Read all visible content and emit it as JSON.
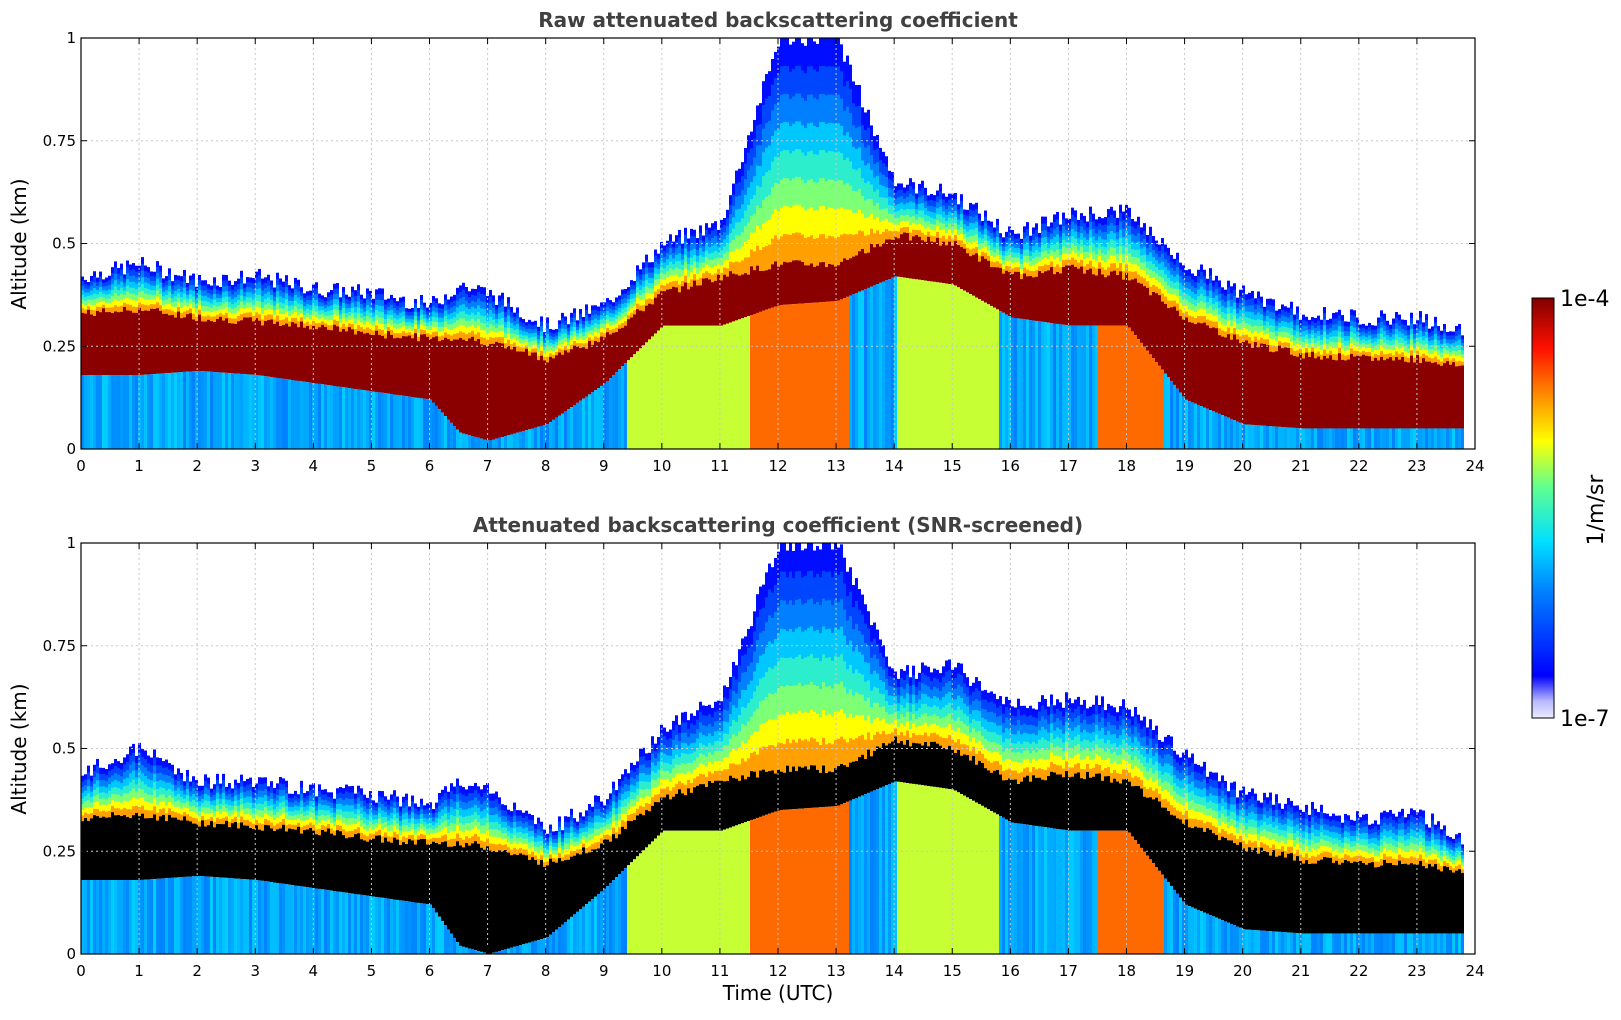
{
  "chart_data": [
    {
      "type": "heatmap",
      "title": "Raw attenuated backscattering coefficient",
      "xlabel": "",
      "ylabel": "Altitude (km)",
      "xlim": [
        0,
        24
      ],
      "ylim": [
        0,
        1
      ],
      "xticks": [
        "0",
        "1",
        "2",
        "3",
        "4",
        "5",
        "6",
        "7",
        "8",
        "9",
        "10",
        "11",
        "12",
        "13",
        "14",
        "15",
        "16",
        "17",
        "18",
        "19",
        "20",
        "21",
        "22",
        "23",
        "24"
      ],
      "yticks": [
        "0",
        "0.25",
        "0.5",
        "0.75",
        "1"
      ],
      "grid": true,
      "screened": false,
      "x_hours": [
        0,
        1,
        2,
        3,
        4,
        5,
        6,
        6.5,
        7,
        8,
        9,
        10,
        11,
        12,
        13,
        14,
        15,
        16,
        17,
        18,
        19,
        20,
        21,
        22,
        23,
        23.8
      ],
      "layer_top_km": [
        0.42,
        0.45,
        0.41,
        0.42,
        0.39,
        0.38,
        0.35,
        0.4,
        0.38,
        0.3,
        0.35,
        0.5,
        0.55,
        1.0,
        1.0,
        0.65,
        0.62,
        0.52,
        0.57,
        0.58,
        0.45,
        0.38,
        0.33,
        0.32,
        0.32,
        0.28
      ],
      "dense_top_km": [
        0.33,
        0.34,
        0.32,
        0.31,
        0.3,
        0.28,
        0.27,
        0.27,
        0.26,
        0.22,
        0.27,
        0.38,
        0.42,
        0.45,
        0.45,
        0.52,
        0.5,
        0.42,
        0.44,
        0.42,
        0.32,
        0.26,
        0.23,
        0.22,
        0.22,
        0.2
      ],
      "dense_bottom_km": [
        0.18,
        0.18,
        0.19,
        0.18,
        0.16,
        0.14,
        0.12,
        0.04,
        0.02,
        0.06,
        0.16,
        0.3,
        0.3,
        0.35,
        0.36,
        0.42,
        0.4,
        0.32,
        0.3,
        0.3,
        0.12,
        0.06,
        0.05,
        0.05,
        0.05,
        0.05
      ]
    },
    {
      "type": "heatmap",
      "title": "Attenuated backscattering coefficient (SNR-screened)",
      "xlabel": "Time (UTC)",
      "ylabel": "Altitude (km)",
      "xlim": [
        0,
        24
      ],
      "ylim": [
        0,
        1
      ],
      "xticks": [
        "0",
        "1",
        "2",
        "3",
        "4",
        "5",
        "6",
        "7",
        "8",
        "9",
        "10",
        "11",
        "12",
        "13",
        "14",
        "15",
        "16",
        "17",
        "18",
        "19",
        "20",
        "21",
        "22",
        "23",
        "24"
      ],
      "yticks": [
        "0",
        "0.25",
        "0.5",
        "0.75",
        "1"
      ],
      "grid": true,
      "screened": true,
      "x_hours": [
        0,
        1,
        2,
        3,
        4,
        5,
        6,
        6.5,
        7,
        8,
        9,
        10,
        11,
        12,
        13,
        14,
        15,
        16,
        17,
        18,
        19,
        20,
        21,
        22,
        23,
        23.8
      ],
      "layer_top_km": [
        0.44,
        0.5,
        0.42,
        0.42,
        0.4,
        0.39,
        0.36,
        0.42,
        0.4,
        0.3,
        0.38,
        0.55,
        0.62,
        1.0,
        1.0,
        0.68,
        0.7,
        0.6,
        0.62,
        0.6,
        0.48,
        0.39,
        0.36,
        0.33,
        0.34,
        0.28
      ],
      "dense_top_km": [
        0.33,
        0.34,
        0.32,
        0.31,
        0.3,
        0.28,
        0.27,
        0.27,
        0.26,
        0.22,
        0.27,
        0.38,
        0.42,
        0.45,
        0.45,
        0.52,
        0.5,
        0.42,
        0.44,
        0.42,
        0.32,
        0.26,
        0.23,
        0.22,
        0.22,
        0.2
      ],
      "dense_bottom_km": [
        0.18,
        0.18,
        0.19,
        0.18,
        0.16,
        0.14,
        0.12,
        0.02,
        0.0,
        0.04,
        0.16,
        0.3,
        0.3,
        0.35,
        0.36,
        0.42,
        0.4,
        0.32,
        0.3,
        0.3,
        0.12,
        0.06,
        0.05,
        0.05,
        0.05,
        0.05
      ]
    }
  ],
  "colorbar": {
    "label": "1/m/sr",
    "max_label": "1e-4",
    "min_label": "1e-7",
    "colormap": "jet",
    "scale": "log",
    "range": [
      1e-07,
      0.0001
    ]
  },
  "colors": {
    "saturated": "#000000",
    "grid": "#c8c8c8"
  }
}
